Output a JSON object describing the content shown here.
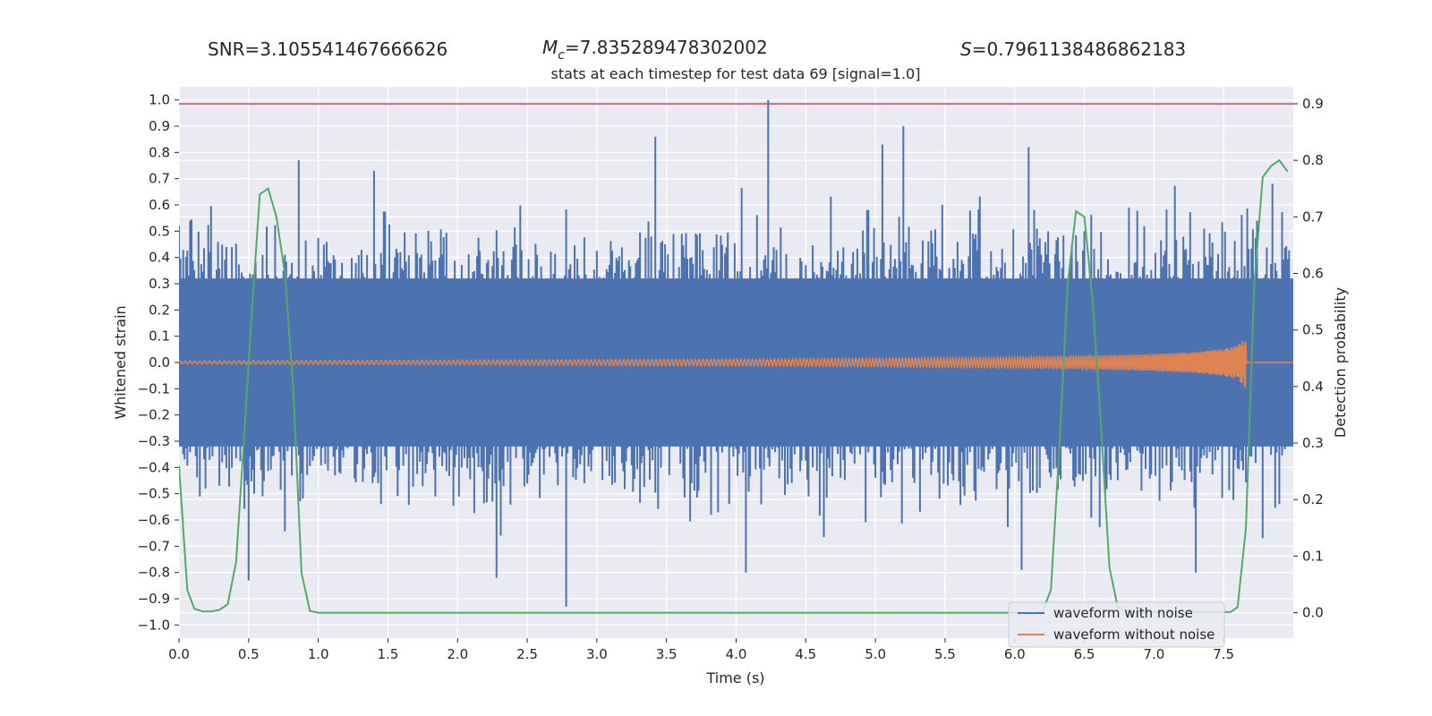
{
  "header": {
    "snr_text": "SNR=3.105541467666626",
    "mc_symbol": "M",
    "mc_subscript": "c",
    "mc_value": "=7.835289478302002",
    "s_symbol": "S",
    "s_value": "=0.7961138486862183"
  },
  "chart_data": {
    "type": "line",
    "title": "stats at each timestep for test data 69 [signal=1.0]",
    "xlabel": "Time (s)",
    "ylabel": "Whitened strain",
    "y2label": "Detection probability",
    "xlim": [
      0,
      8
    ],
    "ylim": [
      -1.05,
      1.05
    ],
    "y2lim": [
      -0.045,
      0.93
    ],
    "x_ticks": [
      "0.0",
      "0.5",
      "1.0",
      "1.5",
      "2.0",
      "2.5",
      "3.0",
      "3.5",
      "4.0",
      "4.5",
      "5.0",
      "5.5",
      "6.0",
      "6.5",
      "7.0",
      "7.5"
    ],
    "y_ticks": [
      "1.0",
      "0.9",
      "0.8",
      "0.7",
      "0.6",
      "0.5",
      "0.4",
      "0.3",
      "0.2",
      "0.1",
      "0.0",
      "−0.1",
      "−0.2",
      "−0.3",
      "−0.4",
      "−0.5",
      "−0.6",
      "−0.7",
      "−0.8",
      "−0.9",
      "−1.0"
    ],
    "y2_ticks": [
      "0.9",
      "0.8",
      "0.7",
      "0.6",
      "0.5",
      "0.4",
      "0.3",
      "0.2",
      "0.1",
      "0.0"
    ],
    "grid": true,
    "legend_position": "bottom-right",
    "threshold": {
      "axis": "y2",
      "value": 0.9,
      "color": "#c44e52"
    },
    "series": [
      {
        "name": "waveform with noise",
        "axis": "y",
        "color": "#4c72b0",
        "sampling": "dense noise, shown as per-0.01s min/max envelope",
        "envelope_step": 0.01,
        "envelope_base_amplitude": 0.4,
        "spikes": [
          {
            "x": 0.5,
            "y": -0.83
          },
          {
            "x": 0.86,
            "y": 0.77
          },
          {
            "x": 1.4,
            "y": 0.73
          },
          {
            "x": 2.28,
            "y": -0.82
          },
          {
            "x": 2.78,
            "y": -0.93
          },
          {
            "x": 3.42,
            "y": 0.86
          },
          {
            "x": 4.23,
            "y": 1.0
          },
          {
            "x": 4.07,
            "y": -0.8
          },
          {
            "x": 5.2,
            "y": 0.9
          },
          {
            "x": 5.05,
            "y": 0.83
          },
          {
            "x": 6.1,
            "y": 0.82
          },
          {
            "x": 6.05,
            "y": -0.79
          },
          {
            "x": 7.3,
            "y": -0.8
          },
          {
            "x": 7.78,
            "y": -0.67
          },
          {
            "x": 7.85,
            "y": 0.68
          }
        ]
      },
      {
        "name": "waveform without noise",
        "axis": "y",
        "color": "#dd8452",
        "sampling": "chirp envelope (amplitude vs time)",
        "x": [
          0.0,
          1.0,
          2.0,
          3.0,
          4.0,
          5.0,
          6.0,
          6.5,
          7.0,
          7.3,
          7.5,
          7.6,
          7.66,
          7.67,
          8.0
        ],
        "amplitude": [
          0.005,
          0.007,
          0.009,
          0.011,
          0.013,
          0.016,
          0.02,
          0.025,
          0.032,
          0.04,
          0.052,
          0.065,
          0.1,
          0.0,
          0.0
        ]
      },
      {
        "name": "",
        "axis": "y2",
        "color": "#55a868",
        "x": [
          0.0,
          0.06,
          0.11,
          0.17,
          0.23,
          0.29,
          0.35,
          0.41,
          0.47,
          0.52,
          0.58,
          0.64,
          0.7,
          0.76,
          0.82,
          0.88,
          0.94,
          1.0,
          6.15,
          6.2,
          6.26,
          6.32,
          6.38,
          6.44,
          6.5,
          6.56,
          6.62,
          6.68,
          6.74,
          6.8,
          6.86,
          7.55,
          7.6,
          7.66,
          7.72,
          7.78,
          7.84,
          7.9,
          7.96
        ],
        "y": [
          0.26,
          0.04,
          0.007,
          0.002,
          0.002,
          0.005,
          0.015,
          0.09,
          0.32,
          0.52,
          0.74,
          0.75,
          0.7,
          0.6,
          0.4,
          0.07,
          0.003,
          0.0,
          0.0,
          0.003,
          0.04,
          0.29,
          0.58,
          0.71,
          0.7,
          0.55,
          0.33,
          0.08,
          0.01,
          0.003,
          0.001,
          0.001,
          0.01,
          0.15,
          0.58,
          0.77,
          0.79,
          0.8,
          0.78
        ]
      }
    ]
  }
}
